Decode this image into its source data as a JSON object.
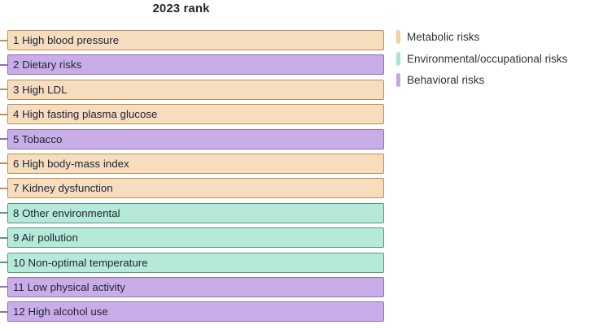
{
  "title": "2023 rank",
  "legend": [
    {
      "label": "Metabolic risks",
      "category": "metabolic",
      "color": "#F0CFA3"
    },
    {
      "label": "Environmental/occupational risks",
      "category": "environmental",
      "color": "#A9E4CF"
    },
    {
      "label": "Behavioral risks",
      "category": "behavioral",
      "color": "#C7A7E3"
    }
  ],
  "category_styles": {
    "metabolic": {
      "fill": "#F6DDBE",
      "border": "#BE8F5B"
    },
    "environmental": {
      "fill": "#B5EAD8",
      "border": "#55997F"
    },
    "behavioral": {
      "fill": "#C9ADE8",
      "border": "#8E6FB8"
    }
  },
  "chart_data": {
    "type": "bar",
    "title": "2023 rank",
    "orientation": "horizontal",
    "legend_position": "right",
    "items": [
      {
        "rank": 1,
        "label": "High blood pressure",
        "category": "metabolic"
      },
      {
        "rank": 2,
        "label": "Dietary risks",
        "category": "behavioral"
      },
      {
        "rank": 3,
        "label": "High LDL",
        "category": "metabolic"
      },
      {
        "rank": 4,
        "label": "High fasting plasma glucose",
        "category": "metabolic"
      },
      {
        "rank": 5,
        "label": "Tobacco",
        "category": "behavioral"
      },
      {
        "rank": 6,
        "label": "High body-mass index",
        "category": "metabolic"
      },
      {
        "rank": 7,
        "label": "Kidney dysfunction",
        "category": "metabolic"
      },
      {
        "rank": 8,
        "label": "Other environmental",
        "category": "environmental"
      },
      {
        "rank": 9,
        "label": "Air pollution",
        "category": "environmental"
      },
      {
        "rank": 10,
        "label": "Non-optimal temperature",
        "category": "environmental"
      },
      {
        "rank": 11,
        "label": "Low physical activity",
        "category": "behavioral"
      },
      {
        "rank": 12,
        "label": "High alcohol use",
        "category": "behavioral"
      }
    ]
  }
}
